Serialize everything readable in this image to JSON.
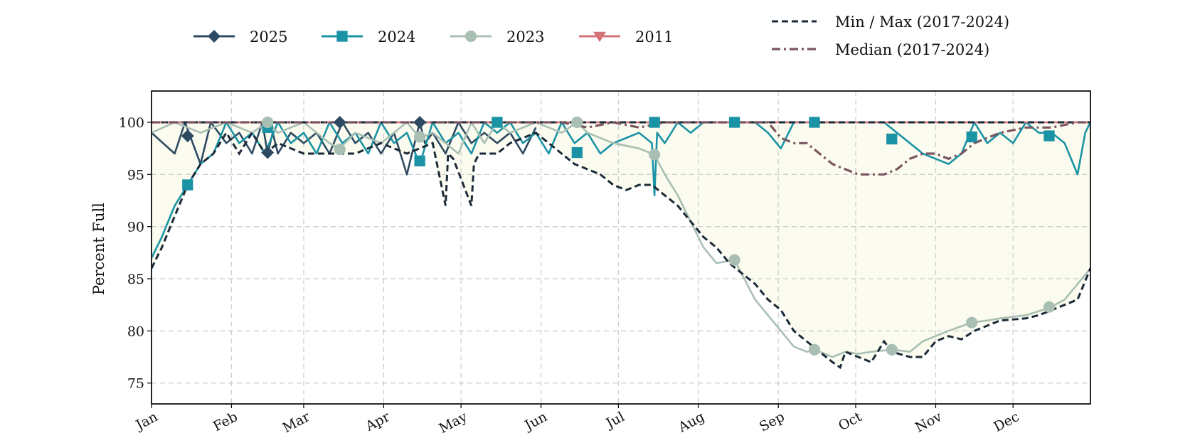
{
  "chart_data": {
    "type": "line",
    "title": "",
    "xlabel": "",
    "ylabel": "Percent Full",
    "categories": [
      "Jan",
      "Feb",
      "Mar",
      "Apr",
      "May",
      "Jun",
      "Jul",
      "Aug",
      "Sep",
      "Oct",
      "Nov",
      "Dec"
    ],
    "ylim": [
      73,
      103
    ],
    "yticks": [
      75,
      80,
      85,
      90,
      95,
      100
    ],
    "grid": true,
    "legend_placement": "top",
    "series": [
      {
        "name": "2025",
        "color": "#2e4a62",
        "marker": "diamond",
        "x": [
          1,
          10,
          14,
          20,
          24,
          30,
          35,
          40,
          44,
          46,
          48,
          50,
          55,
          60,
          65,
          70,
          75,
          80,
          85,
          90,
          95,
          100,
          105,
          107,
          110,
          115,
          120,
          125,
          130,
          135,
          140,
          145,
          150
        ],
        "y": [
          99,
          97,
          100,
          96,
          100,
          98,
          99,
          97,
          100,
          97,
          99,
          97,
          99,
          98,
          99,
          97,
          100,
          98,
          99,
          97,
          99,
          95,
          100,
          98,
          99,
          97,
          100,
          98,
          99,
          98,
          99,
          97,
          99.5
        ],
        "marker_points": [
          [
            15,
            98.7
          ],
          [
            46,
            97.1
          ],
          [
            74,
            100
          ],
          [
            105,
            100
          ]
        ]
      },
      {
        "name": "2024",
        "color": "#1a93a4",
        "marker": "square",
        "x": [
          1,
          5,
          10,
          15,
          20,
          25,
          30,
          35,
          40,
          45,
          50,
          55,
          60,
          65,
          70,
          75,
          80,
          85,
          90,
          95,
          100,
          105,
          110,
          115,
          120,
          125,
          130,
          135,
          140,
          145,
          150,
          155,
          160,
          165,
          170,
          175,
          180,
          185,
          190,
          195,
          196,
          197,
          200,
          205,
          210,
          215,
          220,
          225,
          230,
          235,
          240,
          245,
          250,
          255,
          260,
          265,
          270,
          275,
          280,
          285,
          290,
          295,
          300,
          305,
          310,
          315,
          320,
          325,
          330,
          335,
          340,
          345,
          350,
          355,
          360,
          363,
          365
        ],
        "y": [
          87,
          89,
          92,
          94,
          96,
          97,
          100,
          98,
          99,
          97,
          100,
          98,
          99,
          97,
          100,
          98,
          99,
          97,
          100,
          98,
          99,
          96,
          100,
          98,
          99,
          97,
          100,
          99,
          100,
          98,
          99,
          97,
          100,
          98,
          99,
          97,
          98,
          98.5,
          99,
          98,
          93,
          99,
          98,
          100,
          99,
          100,
          100,
          100,
          100,
          100,
          99,
          97.5,
          100,
          100,
          100,
          100,
          100,
          100,
          100,
          100,
          99,
          98,
          97,
          96.5,
          96,
          97,
          100,
          98,
          99,
          98,
          100,
          99,
          99,
          98,
          95,
          99,
          100
        ],
        "marker_points": [
          [
            15,
            94
          ],
          [
            46,
            99.5
          ],
          [
            105,
            96.3
          ],
          [
            135,
            100
          ],
          [
            166,
            97.1
          ],
          [
            196,
            100
          ],
          [
            227,
            100
          ],
          [
            258,
            100
          ],
          [
            288,
            98.4
          ],
          [
            319,
            98.6
          ],
          [
            349,
            98.7
          ]
        ]
      },
      {
        "name": "2023",
        "color": "#a9bfb3",
        "marker": "circle",
        "x": [
          1,
          10,
          20,
          30,
          40,
          46,
          50,
          60,
          70,
          74,
          80,
          90,
          100,
          105,
          110,
          120,
          125,
          130,
          135,
          140,
          150,
          160,
          166,
          170,
          180,
          190,
          196,
          200,
          205,
          210,
          215,
          220,
          227,
          235,
          240,
          245,
          250,
          255,
          258,
          265,
          270,
          275,
          280,
          288,
          295,
          300,
          305,
          310,
          319,
          325,
          330,
          340,
          349,
          355,
          360,
          365
        ],
        "y": [
          99,
          100,
          99,
          100,
          99,
          100,
          99,
          100,
          98,
          97.5,
          99,
          98,
          100,
          98.5,
          99,
          97,
          100,
          98,
          100,
          99,
          100,
          99,
          100,
          99,
          98,
          97.5,
          96.9,
          95,
          93,
          90.5,
          88,
          86.5,
          86.8,
          83,
          81.5,
          80,
          78.5,
          78,
          78.2,
          77.5,
          78,
          77.8,
          78,
          78.2,
          78,
          79,
          79.5,
          80,
          80.8,
          81,
          81.2,
          81.5,
          82.2,
          83,
          84.5,
          86
        ],
        "marker_points": [
          [
            46,
            100
          ],
          [
            74,
            97.4
          ],
          [
            105,
            98.6
          ],
          [
            166,
            100
          ],
          [
            196,
            96.9
          ],
          [
            227,
            86.8
          ],
          [
            258,
            78.2
          ],
          [
            288,
            78.2
          ],
          [
            319,
            80.8
          ],
          [
            349,
            82.3
          ]
        ]
      },
      {
        "name": "2011",
        "color": "#d4737a",
        "marker": "triangle-down",
        "x": [
          1,
          365
        ],
        "y": [
          100,
          100
        ],
        "marker_points": []
      },
      {
        "name": "Min / Max (2017-2024)",
        "color": "#1b2a38",
        "style": "dashed",
        "max_x": [
          1,
          365
        ],
        "max_y": [
          100,
          100
        ],
        "min_x": [
          1,
          5,
          10,
          15,
          20,
          25,
          30,
          35,
          40,
          45,
          50,
          60,
          70,
          80,
          90,
          100,
          110,
          115,
          116,
          118,
          125,
          126,
          128,
          135,
          140,
          150,
          155,
          160,
          165,
          170,
          175,
          180,
          185,
          190,
          195,
          200,
          205,
          210,
          215,
          220,
          225,
          230,
          235,
          240,
          245,
          250,
          255,
          260,
          265,
          268,
          270,
          275,
          280,
          285,
          288,
          295,
          300,
          305,
          310,
          315,
          320,
          330,
          340,
          345,
          350,
          355,
          360,
          365
        ],
        "min_y": [
          86,
          88,
          91,
          94,
          96,
          97,
          99,
          97,
          99,
          97,
          98,
          97,
          97,
          97,
          98,
          97,
          98,
          92,
          97,
          96.5,
          92,
          96,
          97,
          97,
          98,
          99,
          98,
          97,
          96,
          95.5,
          95,
          94,
          93.5,
          94,
          94,
          93,
          92,
          90.5,
          89,
          88,
          86.5,
          85.5,
          84.5,
          83,
          82,
          80,
          79,
          78,
          77,
          76.5,
          78,
          77.5,
          77,
          79,
          78,
          77.5,
          77.5,
          79,
          79.5,
          79.2,
          80,
          81,
          81.2,
          81.5,
          82,
          82.5,
          83,
          86
        ]
      },
      {
        "name": "Median (2017-2024)",
        "color": "#7b5560",
        "style": "dashdot",
        "x": [
          1,
          20,
          40,
          60,
          80,
          100,
          120,
          140,
          160,
          170,
          180,
          190,
          200,
          210,
          220,
          230,
          240,
          245,
          250,
          255,
          260,
          265,
          270,
          275,
          280,
          285,
          290,
          295,
          300,
          305,
          310,
          315,
          320,
          330,
          340,
          350,
          360,
          365
        ],
        "y": [
          100,
          100,
          100,
          100,
          100,
          100,
          100,
          100,
          100,
          99.5,
          100,
          99.5,
          100,
          100,
          100,
          100,
          100,
          98.5,
          98,
          98,
          97,
          96,
          95.5,
          95,
          95,
          95,
          95.5,
          96.5,
          97,
          97,
          96.5,
          97,
          98,
          99,
          99.5,
          99.5,
          100,
          100
        ]
      }
    ]
  }
}
